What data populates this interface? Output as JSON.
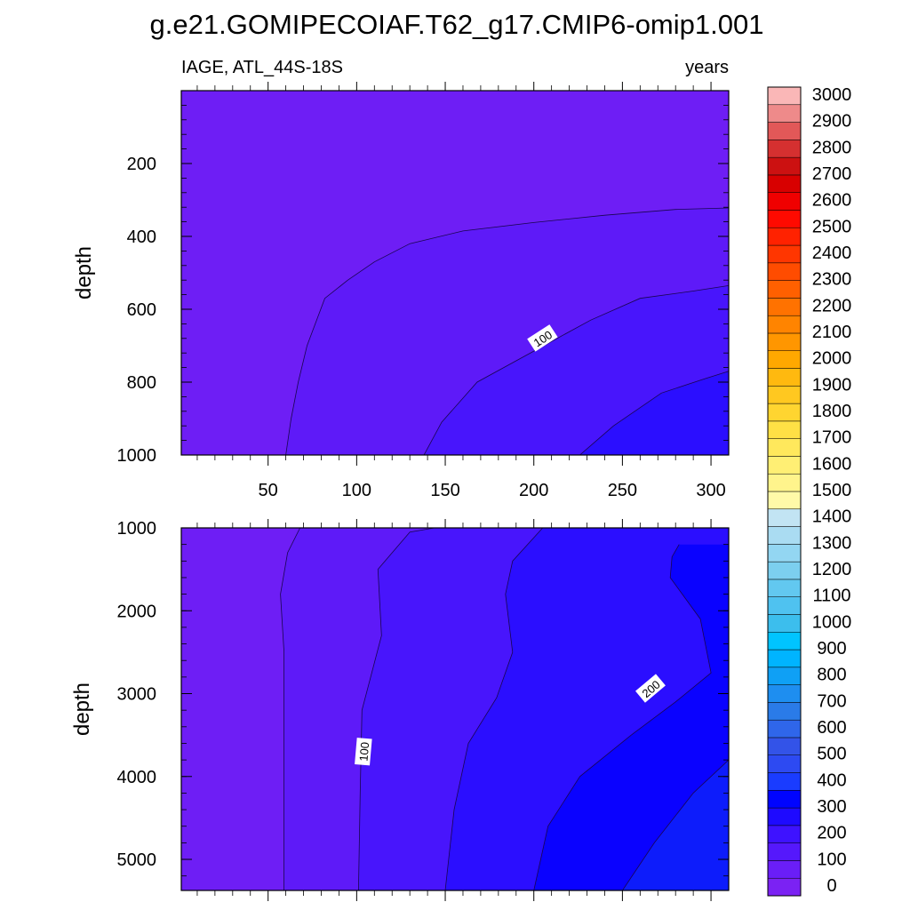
{
  "title": "g.e21.GOMIPECOIAF.T62_g17.CMIP6-omip1.001",
  "chart_data": {
    "type": "contour",
    "left_string": "IAGE, ATL_44S-18S",
    "right_string": "years",
    "x": {
      "range": [
        1,
        310
      ],
      "ticks": [
        50,
        100,
        150,
        200,
        250,
        300
      ]
    },
    "panels": [
      {
        "name": "upper",
        "ylabel": "depth",
        "ylim": [
          0,
          1000
        ],
        "yticks": [
          200,
          400,
          600,
          800,
          1000
        ],
        "y_reversed": true,
        "contour_labels": [
          {
            "text": "100",
            "x": 205,
            "y": 680
          }
        ],
        "boundaries": [
          {
            "level": 50,
            "points": [
              [
                60,
                1000
              ],
              [
                63,
                900
              ],
              [
                67,
                800
              ],
              [
                72,
                700
              ],
              [
                82,
                570
              ],
              [
                95,
                520
              ],
              [
                110,
                470
              ],
              [
                130,
                420
              ],
              [
                160,
                385
              ],
              [
                200,
                362
              ],
              [
                240,
                342
              ],
              [
                280,
                326
              ],
              [
                310,
                322
              ]
            ]
          },
          {
            "level": 100,
            "points": [
              [
                138,
                1000
              ],
              [
                148,
                910
              ],
              [
                168,
                800
              ],
              [
                200,
                715
              ],
              [
                232,
                630
              ],
              [
                260,
                570
              ],
              [
                290,
                550
              ],
              [
                310,
                535
              ]
            ]
          },
          {
            "level": 150,
            "points": [
              [
                226,
                1000
              ],
              [
                245,
                920
              ],
              [
                272,
                830
              ],
              [
                297,
                790
              ],
              [
                310,
                770
              ]
            ]
          }
        ]
      },
      {
        "name": "lower",
        "ylabel": "depth",
        "ylim": [
          1000,
          5375
        ],
        "yticks": [
          1000,
          2000,
          3000,
          4000,
          5000
        ],
        "y_reversed": true,
        "contour_labels": [
          {
            "text": "100",
            "x": 104,
            "y": 3700
          },
          {
            "text": "200",
            "x": 266,
            "y": 2940
          }
        ],
        "boundaries": [
          {
            "level": 50,
            "points": [
              [
                59,
                5375
              ],
              [
                59,
                4000
              ],
              [
                59,
                2500
              ],
              [
                57,
                1800
              ],
              [
                61,
                1300
              ],
              [
                68,
                1000
              ]
            ]
          },
          {
            "level": 100,
            "points": [
              [
                101,
                5375
              ],
              [
                102,
                4200
              ],
              [
                103,
                3200
              ],
              [
                114,
                2300
              ],
              [
                112,
                1500
              ],
              [
                130,
                1050
              ],
              [
                144,
                1000
              ]
            ]
          },
          {
            "level": 150,
            "points": [
              [
                150,
                5375
              ],
              [
                155,
                4400
              ],
              [
                163,
                3600
              ],
              [
                179,
                3050
              ],
              [
                188,
                2500
              ],
              [
                184,
                1800
              ],
              [
                188,
                1400
              ],
              [
                205,
                1000
              ]
            ]
          },
          {
            "level": 200,
            "points": [
              [
                200,
                5375
              ],
              [
                208,
                4600
              ],
              [
                226,
                4000
              ],
              [
                255,
                3500
              ],
              [
                280,
                3100
              ],
              [
                300,
                2750
              ],
              [
                294,
                2100
              ],
              [
                277,
                1600
              ],
              [
                278,
                1350
              ],
              [
                282,
                1200
              ]
            ]
          },
          {
            "level": 250,
            "points": [
              [
                250,
                5375
              ],
              [
                268,
                4800
              ],
              [
                290,
                4200
              ],
              [
                310,
                3800
              ]
            ]
          }
        ]
      }
    ],
    "colorbar": {
      "levels": [
        0,
        100,
        200,
        300,
        400,
        500,
        600,
        700,
        800,
        900,
        1000,
        1100,
        1200,
        1300,
        1400,
        1500,
        1600,
        1700,
        1800,
        1900,
        2000,
        2100,
        2200,
        2300,
        2400,
        2500,
        2600,
        2700,
        2800,
        2900,
        3000
      ],
      "colors": [
        "#7b22f3",
        "#6a1ef7",
        "#5518fc",
        "#3e12ff",
        "#1e0aff",
        "#0004ff",
        "#1a3cff",
        "#2d4af2",
        "#3353e8",
        "#2f66ea",
        "#2a7be8",
        "#1e8ef0",
        "#0fa0f5",
        "#00b4ff",
        "#00c4ff",
        "#3cbeed",
        "#4fc2f0",
        "#62c8f0",
        "#7ccfef",
        "#93d6f2",
        "#aadcf2",
        "#c2e4f3",
        "#fff9a8",
        "#fff48c",
        "#ffef74",
        "#ffe85c",
        "#ffe045",
        "#ffd530",
        "#ffc820",
        "#ffb90f",
        "#ffa800",
        "#ff9600",
        "#ff8400",
        "#ff7200",
        "#ff6000",
        "#ff4c00",
        "#ff3600",
        "#ff2200",
        "#ff0a00",
        "#f00000",
        "#d80000",
        "#cc1111",
        "#d53030",
        "#e25858",
        "#ee8a8a",
        "#fab7b7"
      ]
    }
  }
}
